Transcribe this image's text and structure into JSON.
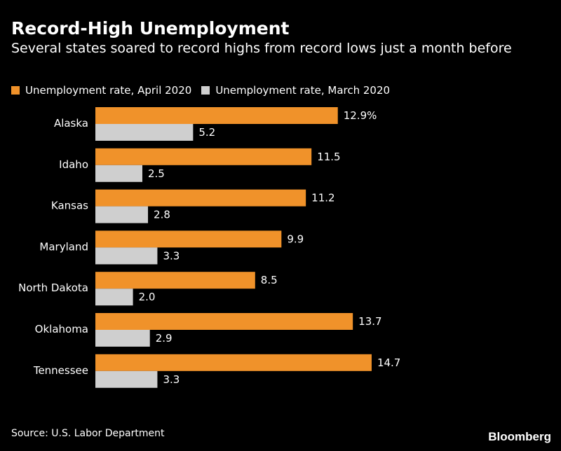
{
  "title": "Record-High Unemployment",
  "subtitle": "Several states soared to record highs from record lows just a month before",
  "source": "Source: U.S. Labor Department",
  "brand": "Bloomberg",
  "colors": {
    "april": "#f0922a",
    "march": "#cfcfcf",
    "background": "#000000",
    "text": "#ffffff"
  },
  "legend": [
    {
      "label": "Unemployment rate, April 2020",
      "color": "#f0922a"
    },
    {
      "label": "Unemployment rate, March 2020",
      "color": "#cfcfcf"
    }
  ],
  "chart_data": {
    "type": "bar",
    "orientation": "horizontal",
    "categories": [
      "Alaska",
      "Idaho",
      "Kansas",
      "Maryland",
      "North Dakota",
      "Oklahoma",
      "Tennessee"
    ],
    "series": [
      {
        "name": "Unemployment rate, April 2020",
        "values": [
          12.9,
          11.5,
          11.2,
          9.9,
          8.5,
          13.7,
          14.7
        ],
        "labels": [
          "12.9%",
          "11.5",
          "11.2",
          "9.9",
          "8.5",
          "13.7",
          "14.7"
        ]
      },
      {
        "name": "Unemployment rate, March 2020",
        "values": [
          5.2,
          2.5,
          2.8,
          3.3,
          2.0,
          2.9,
          3.3
        ],
        "labels": [
          "5.2",
          "2.5",
          "2.8",
          "3.3",
          "2.0",
          "2.9",
          "3.3"
        ]
      }
    ],
    "xlim": [
      0,
      15
    ],
    "grid": false,
    "legend_position": "top-left"
  }
}
